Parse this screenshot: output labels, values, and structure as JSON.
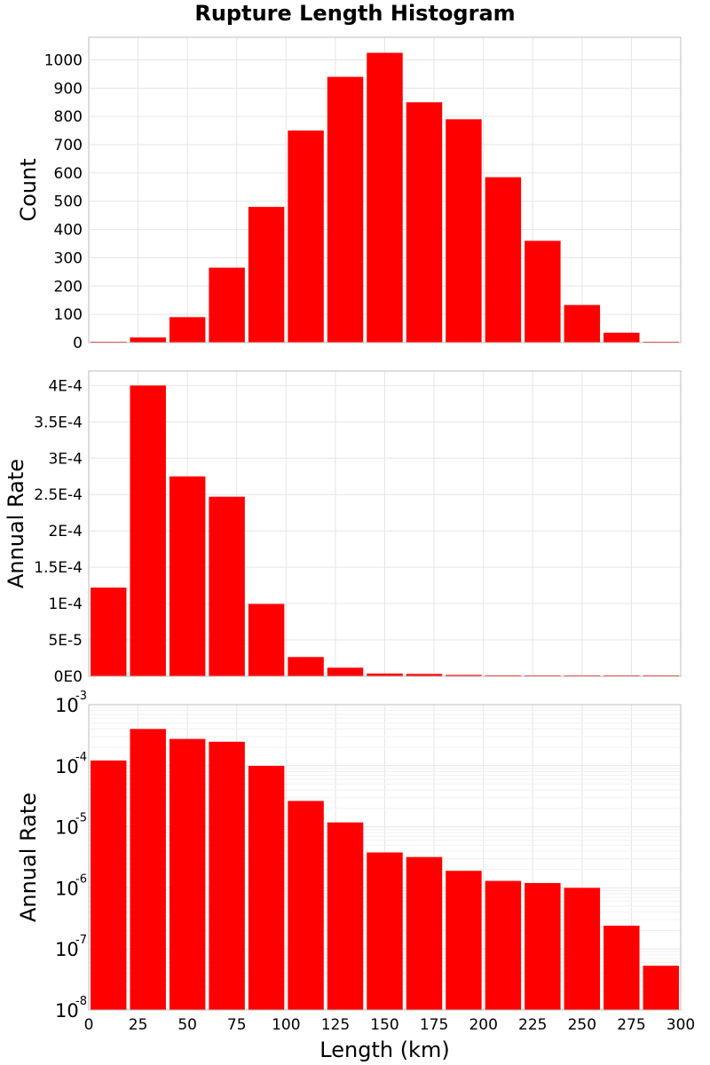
{
  "title": "Rupture Length Histogram",
  "colors": {
    "bar": "#ff0000"
  },
  "chart_data": [
    {
      "type": "bar",
      "title": "Rupture Length Histogram",
      "xlabel": "",
      "ylabel": "Count",
      "x": [
        10,
        30,
        50,
        70,
        90,
        110,
        130,
        150,
        170,
        190,
        210,
        230,
        250,
        270,
        290
      ],
      "values": [
        2,
        18,
        90,
        265,
        480,
        750,
        940,
        1025,
        850,
        790,
        585,
        360,
        133,
        35,
        3
      ],
      "xlim": [
        0,
        300
      ],
      "ylim": [
        0,
        1080
      ],
      "yticks": [
        0,
        100,
        200,
        300,
        400,
        500,
        600,
        700,
        800,
        900,
        1000
      ],
      "ytick_labels": [
        "0",
        "100",
        "200",
        "300",
        "400",
        "500",
        "600",
        "700",
        "800",
        "900",
        "1000"
      ],
      "grid": true
    },
    {
      "type": "bar",
      "xlabel": "",
      "ylabel": "Annual Rate",
      "x": [
        10,
        30,
        50,
        70,
        90,
        110,
        130,
        150,
        170,
        190,
        210,
        230,
        250,
        270,
        290
      ],
      "values": [
        0.000122,
        0.0004,
        0.000275,
        0.000247,
        9.95e-05,
        2.65e-05,
        1.18e-05,
        3.8e-06,
        3.2e-06,
        1.9e-06,
        1.3e-06,
        1.2e-06,
        1e-06,
        2.4e-07,
        5.3e-08
      ],
      "xlim": [
        0,
        300
      ],
      "ylim": [
        0,
        0.00042
      ],
      "yticks": [
        0,
        5e-05,
        0.0001,
        0.00015,
        0.0002,
        0.00025,
        0.0003,
        0.00035,
        0.0004
      ],
      "ytick_labels": [
        "0E0",
        "5E-5",
        "1E-4",
        "1.5E-4",
        "2E-4",
        "2.5E-4",
        "3E-4",
        "3.5E-4",
        "4E-4"
      ],
      "grid": true
    },
    {
      "type": "bar",
      "xlabel": "Length (km)",
      "ylabel": "Annual Rate",
      "log_y": true,
      "x": [
        10,
        30,
        50,
        70,
        90,
        110,
        130,
        150,
        170,
        190,
        210,
        230,
        250,
        270,
        290
      ],
      "values": [
        0.000122,
        0.0004,
        0.000275,
        0.000247,
        9.95e-05,
        2.65e-05,
        1.18e-05,
        3.8e-06,
        3.2e-06,
        1.9e-06,
        1.3e-06,
        1.2e-06,
        1e-06,
        2.4e-07,
        5.3e-08
      ],
      "xlim": [
        0,
        300
      ],
      "ylim": [
        1e-08,
        0.001
      ],
      "ytick_exponents": [
        "-3",
        "-4",
        "-5",
        "-6",
        "-7",
        "-8"
      ],
      "ytick_base": "10",
      "xticks": [
        0,
        25,
        50,
        75,
        100,
        125,
        150,
        175,
        200,
        225,
        250,
        275,
        300
      ],
      "xtick_labels": [
        "0",
        "25",
        "50",
        "75",
        "100",
        "125",
        "150",
        "175",
        "200",
        "225",
        "250",
        "275",
        "300"
      ],
      "grid": true
    }
  ]
}
